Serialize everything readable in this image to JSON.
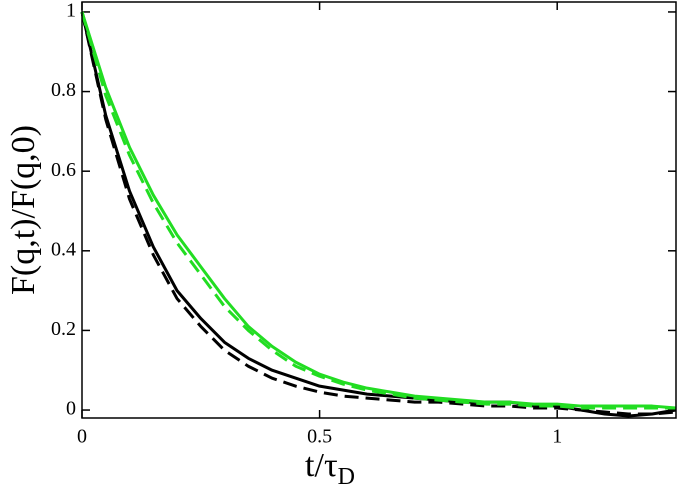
{
  "chart_data": {
    "type": "line",
    "xlabel": "t/τ",
    "xlabel_sub": "D",
    "ylabel": "F(q,t)/F(q,0)",
    "x": [
      0,
      0.05,
      0.1,
      0.15,
      0.2,
      0.25,
      0.3,
      0.35,
      0.4,
      0.45,
      0.5,
      0.55,
      0.6,
      0.65,
      0.7,
      0.75,
      0.8,
      0.85,
      0.9,
      0.95,
      1.0,
      1.05,
      1.1,
      1.15,
      1.2,
      1.25
    ],
    "series": [
      {
        "color": "#000000",
        "dashed": false,
        "values": [
          1,
          0.74,
          0.55,
          0.41,
          0.3,
          0.23,
          0.17,
          0.13,
          0.1,
          0.08,
          0.06,
          0.05,
          0.04,
          0.035,
          0.03,
          0.025,
          0.02,
          0.02,
          0.02,
          0.01,
          0.01,
          0.0,
          -0.01,
          -0.015,
          -0.01,
          0.0
        ]
      },
      {
        "color": "#000000",
        "dashed": true,
        "values": [
          1,
          0.73,
          0.53,
          0.39,
          0.28,
          0.21,
          0.15,
          0.11,
          0.08,
          0.06,
          0.045,
          0.035,
          0.03,
          0.025,
          0.02,
          0.02,
          0.015,
          0.01,
          0.01,
          0.005,
          0.005,
          0,
          -0.005,
          -0.01,
          -0.01,
          -0.005
        ]
      },
      {
        "color": "#22dd22",
        "dashed": false,
        "values": [
          1,
          0.81,
          0.66,
          0.54,
          0.44,
          0.36,
          0.28,
          0.21,
          0.16,
          0.12,
          0.09,
          0.07,
          0.055,
          0.045,
          0.035,
          0.03,
          0.025,
          0.02,
          0.02,
          0.015,
          0.015,
          0.01,
          0.01,
          0.01,
          0.01,
          0.005
        ]
      },
      {
        "color": "#22dd22",
        "dashed": true,
        "values": [
          1,
          0.79,
          0.64,
          0.52,
          0.42,
          0.34,
          0.26,
          0.2,
          0.15,
          0.11,
          0.085,
          0.065,
          0.05,
          0.04,
          0.03,
          0.025,
          0.02,
          0.015,
          0.015,
          0.01,
          0.01,
          0.005,
          0.005,
          0.005,
          0.005,
          0.005
        ]
      }
    ],
    "xlim": [
      0,
      1.25
    ],
    "ylim": [
      -0.02,
      1.025
    ],
    "xticks": [
      0,
      0.5,
      1
    ],
    "yticks": [
      0,
      0.2,
      0.4,
      0.6,
      0.8,
      1
    ]
  }
}
